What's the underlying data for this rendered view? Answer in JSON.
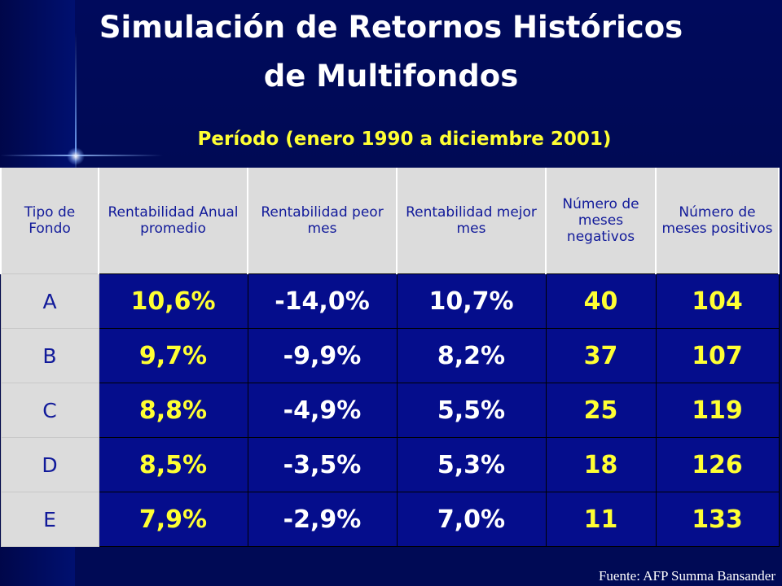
{
  "title_line1": "Simulación de Retornos Históricos",
  "title_line2": "de Multifondos",
  "subtitle": "Período (enero 1990 a diciembre 2001)",
  "source": "Fuente: AFP Summa Bansander",
  "colors": {
    "background": "#000a55",
    "cell": "#050d8c",
    "header": "#dcdcdc",
    "header_text": "#111a9a",
    "highlight": "#ffff33"
  },
  "table": {
    "headers": [
      "Tipo de Fondo",
      "Rentabilidad Anual promedio",
      "Rentabilidad peor mes",
      "Rentabilidad mejor mes",
      "Número de meses negativos",
      "Número de meses positivos"
    ],
    "rows": [
      [
        "A",
        "10,6%",
        "-14,0%",
        "10,7%",
        "40",
        "104"
      ],
      [
        "B",
        "9,7%",
        "-9,9%",
        "8,2%",
        "37",
        "107"
      ],
      [
        "C",
        "8,8%",
        "-4,9%",
        "5,5%",
        "25",
        "119"
      ],
      [
        "D",
        "8,5%",
        "-3,5%",
        "5,3%",
        "18",
        "126"
      ],
      [
        "E",
        "7,9%",
        "-2,9%",
        "7,0%",
        "11",
        "133"
      ]
    ]
  }
}
